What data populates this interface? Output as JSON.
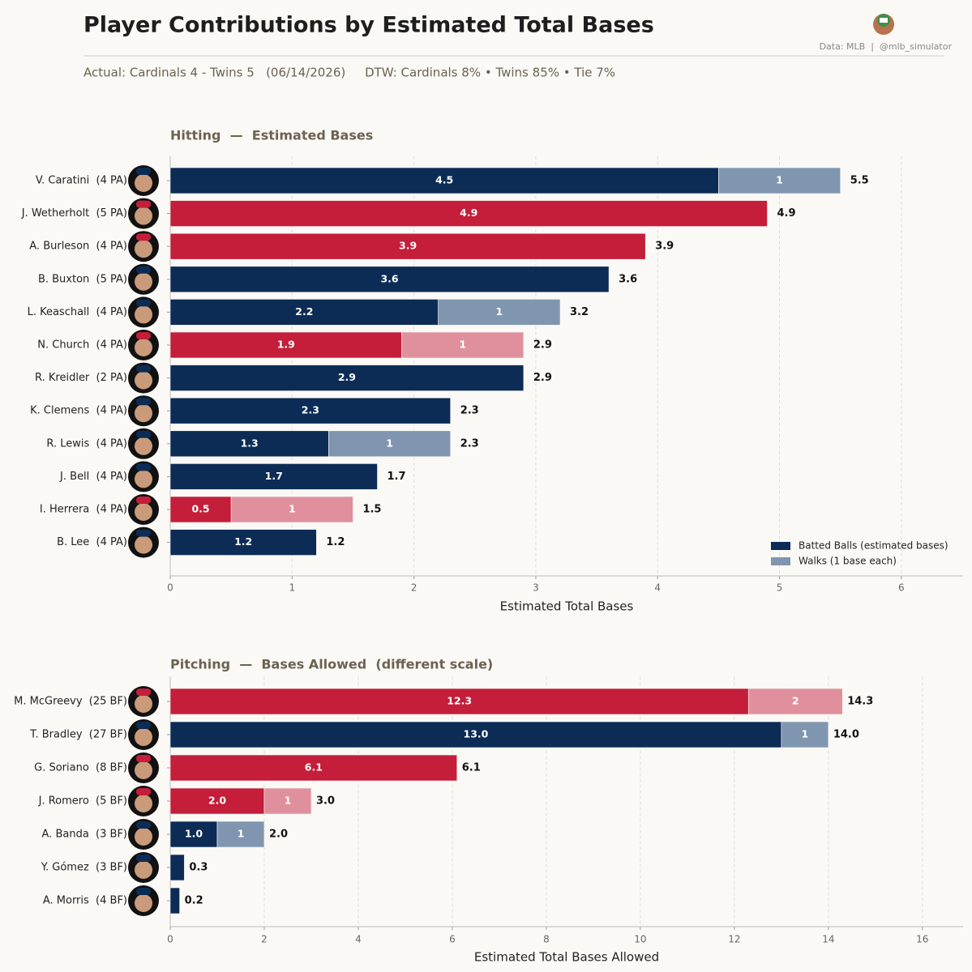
{
  "header": {
    "title": "Player Contributions by Estimated Total Bases",
    "source": "Data: MLB  |  @mlb_simulator",
    "subtitle": "Actual: Cardinals 4 - Twins 5   (06/14/2026)     DTW: Cardinals 8% • Twins 85% • Tie 7%"
  },
  "chart_data": [
    {
      "type": "bar",
      "orientation": "horizontal",
      "stacked": true,
      "title": "Hitting  —  Estimated Bases",
      "x_label": "Estimated Total Bases",
      "categories": [
        "V. Caratini  (4 PA)",
        "J. Wetherholt  (5 PA)",
        "A. Burleson  (4 PA)",
        "B. Buxton  (5 PA)",
        "L. Keaschall  (4 PA)",
        "N. Church  (4 PA)",
        "R. Kreidler  (2 PA)",
        "K. Clemens  (4 PA)",
        "R. Lewis  (4 PA)",
        "J. Bell  (4 PA)",
        "I. Herrera  (4 PA)",
        "B. Lee  (4 PA)"
      ],
      "series": [
        {
          "name": "Batted Balls (estimated bases)",
          "color": "#0c2c56",
          "colors": [
            "#0c2c56",
            "#c41e3a",
            "#c41e3a",
            "#0c2c56",
            "#0c2c56",
            "#c41e3a",
            "#0c2c56",
            "#0c2c56",
            "#0c2c56",
            "#0c2c56",
            "#c41e3a",
            "#0c2c56"
          ],
          "values": [
            4.5,
            4.9,
            3.9,
            3.6,
            2.2,
            1.9,
            2.9,
            2.3,
            1.3,
            1.7,
            0.5,
            1.2
          ]
        },
        {
          "name": "Walks (1 base each)",
          "color": "#8096b0",
          "colors": [
            "#8096b0",
            "#8096b0",
            "#8096b0",
            "#8096b0",
            "#8096b0",
            "#e0909d",
            "#8096b0",
            "#8096b0",
            "#8096b0",
            "#8096b0",
            "#e0909d",
            "#8096b0"
          ],
          "values": [
            1,
            null,
            null,
            null,
            1,
            1,
            null,
            null,
            1,
            null,
            1,
            null
          ]
        }
      ],
      "totals": [
        5.5,
        4.9,
        3.9,
        3.6,
        3.2,
        2.9,
        2.9,
        2.3,
        2.3,
        1.7,
        1.5,
        1.2
      ],
      "xlim": [
        0,
        6.5
      ],
      "xticks": [
        0,
        1,
        2,
        3,
        4,
        5,
        6
      ],
      "grid": true,
      "legend": "lower right"
    },
    {
      "type": "bar",
      "orientation": "horizontal",
      "stacked": true,
      "title": "Pitching  —  Bases Allowed  (different scale)",
      "x_label": "Estimated Total Bases Allowed",
      "categories": [
        "M. McGreevy  (25 BF)",
        "T. Bradley  (27 BF)",
        "G. Soriano  (8 BF)",
        "J. Romero  (5 BF)",
        "A. Banda  (3 BF)",
        "Y. Gómez  (3 BF)",
        "A. Morris  (4 BF)"
      ],
      "series": [
        {
          "name": "Batted Balls (estimated bases)",
          "colors": [
            "#c41e3a",
            "#0c2c56",
            "#c41e3a",
            "#c41e3a",
            "#0c2c56",
            "#0c2c56",
            "#0c2c56"
          ],
          "values": [
            12.3,
            13,
            6.1,
            2,
            1,
            0.3,
            0.2
          ],
          "value_labels": [
            "12.3",
            "13.0",
            "6.1",
            "2.0",
            "1.0",
            null,
            null
          ]
        },
        {
          "name": "Walks (1 base each)",
          "colors": [
            "#e0909d",
            "#8096b0",
            "#e0909d",
            "#e0909d",
            "#8096b0",
            "#8096b0",
            "#8096b0"
          ],
          "values": [
            2,
            1,
            null,
            1,
            1,
            null,
            null
          ]
        }
      ],
      "totals": [
        14.3,
        14,
        6.1,
        3,
        2,
        0.3,
        0.2
      ],
      "total_labels": [
        "14.3",
        "14.0",
        "6.1",
        "3.0",
        "2.0",
        "0.3",
        "0.2"
      ],
      "xlim": [
        0,
        16.9
      ],
      "xticks": [
        0,
        2,
        4,
        6,
        8,
        10,
        12,
        14,
        16
      ],
      "grid": true
    }
  ]
}
